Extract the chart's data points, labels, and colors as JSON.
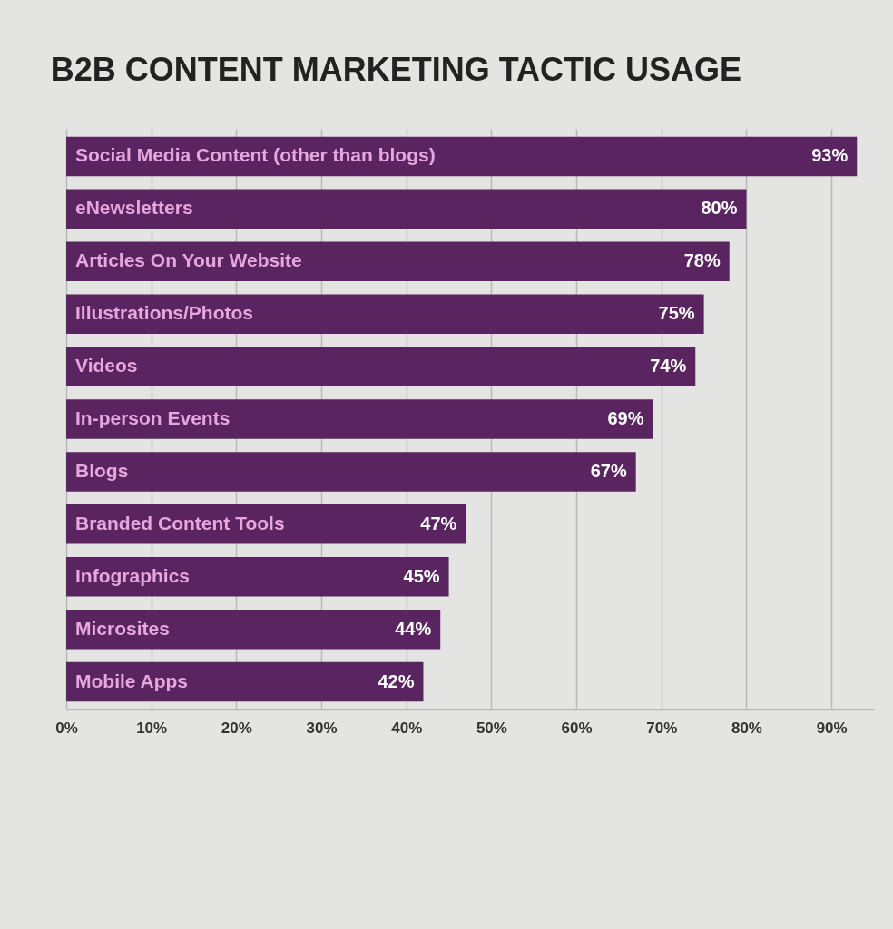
{
  "chart_data": {
    "type": "bar",
    "orientation": "horizontal",
    "title": "B2B CONTENT MARKETING TACTIC USAGE",
    "categories": [
      "Social Media Content (other than blogs)",
      "eNewsletters",
      "Articles On Your Website",
      "Illustrations/Photos",
      "Videos",
      "In-person Events",
      "Blogs",
      "Branded Content Tools",
      "Infographics",
      "Microsites",
      "Mobile Apps"
    ],
    "values": [
      93,
      80,
      78,
      75,
      74,
      69,
      67,
      47,
      45,
      44,
      42
    ],
    "value_labels": [
      "93%",
      "80%",
      "78%",
      "75%",
      "74%",
      "69%",
      "67%",
      "47%",
      "45%",
      "44%",
      "42%"
    ],
    "color": "#5a2461",
    "xlim": [
      0,
      95
    ],
    "xticks": [
      {
        "value": 0,
        "label": "0%"
      },
      {
        "value": 10,
        "label": "10%"
      },
      {
        "value": 20,
        "label": "20%"
      },
      {
        "value": 30,
        "label": "30%"
      },
      {
        "value": 40,
        "label": "40%"
      },
      {
        "value": 50,
        "label": "50%"
      },
      {
        "value": 60,
        "label": "60%"
      },
      {
        "value": 70,
        "label": "70%"
      },
      {
        "value": 80,
        "label": "80%"
      },
      {
        "value": 90,
        "label": "90%"
      }
    ],
    "grid": "x"
  }
}
